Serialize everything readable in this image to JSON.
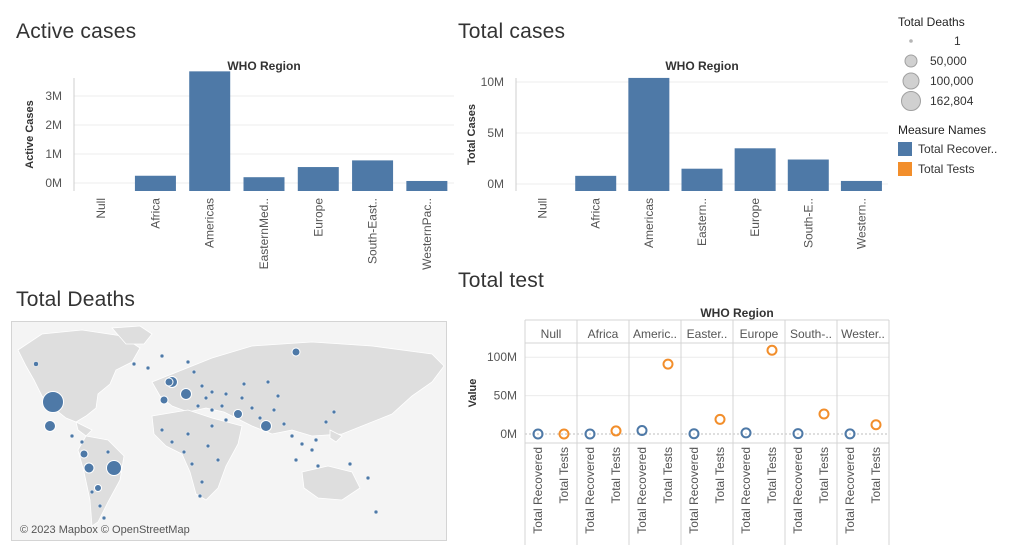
{
  "sheets": {
    "active_cases_title": "Active cases",
    "total_cases_title": "Total cases",
    "total_deaths_title": "Total Deaths",
    "total_test_title": "Total test"
  },
  "colors": {
    "bar_blue": "#4e79a7",
    "orange": "#f28e2b",
    "land": "#dedede",
    "water": "#f4f4f4"
  },
  "legend_deaths": {
    "title": "Total Deaths",
    "items": [
      "1",
      "50,000",
      "100,000",
      "162,804"
    ]
  },
  "legend_measures": {
    "title": "Measure Names",
    "items": [
      {
        "label": "Total Recover..",
        "color": "#4e79a7"
      },
      {
        "label": "Total Tests",
        "color": "#f28e2b"
      }
    ]
  },
  "map": {
    "credit": "© 2023 Mapbox © OpenStreetMap",
    "icon": "world-map-icon"
  },
  "chart_data": [
    {
      "type": "bar",
      "title": "Active cases",
      "header": "WHO Region",
      "ylabel": "Active Cases",
      "ylim": [
        -0.1,
        3.8
      ],
      "yticks": [
        "0M",
        "1M",
        "2M",
        "3M"
      ],
      "categories": [
        "Null",
        "Africa",
        "Americas",
        "EasternMed..",
        "Europe",
        "South-East..",
        "WesternPac.."
      ],
      "values": [
        0.0,
        0.25,
        3.85,
        0.2,
        0.55,
        0.78,
        0.07
      ],
      "unit": "M",
      "grid": true
    },
    {
      "type": "bar",
      "title": "Total cases",
      "header": "WHO Region",
      "ylabel": "Total Cases",
      "ylim": [
        -0.5,
        10.3
      ],
      "yticks": [
        "0M",
        "5M",
        "10M"
      ],
      "categories": [
        "Null",
        "Africa",
        "Americas",
        "Eastern..",
        "Europe",
        "South-E..",
        "Western.."
      ],
      "values": [
        0.0,
        0.8,
        10.4,
        1.5,
        3.5,
        2.4,
        0.3
      ],
      "unit": "M",
      "grid": true
    },
    {
      "type": "scatter",
      "title": "Total test",
      "header": "WHO Region",
      "ylabel": "Value",
      "ylim": [
        0,
        110
      ],
      "yticks": [
        "0M",
        "50M",
        "100M"
      ],
      "regions": [
        "Null",
        "Africa",
        "Americ..",
        "Easter..",
        "Europe",
        "South-..",
        "Wester.."
      ],
      "measures": [
        "Total Recovered",
        "Total Tests"
      ],
      "series": [
        {
          "name": "Total Recovered",
          "values": [
            0.0,
            0.0,
            4.5,
            0.3,
            1.5,
            0.5,
            0.1
          ]
        },
        {
          "name": "Total Tests",
          "values": [
            0.0,
            4.0,
            91.0,
            19.0,
            109.0,
            26.0,
            12.0
          ]
        }
      ],
      "grid": true
    }
  ]
}
